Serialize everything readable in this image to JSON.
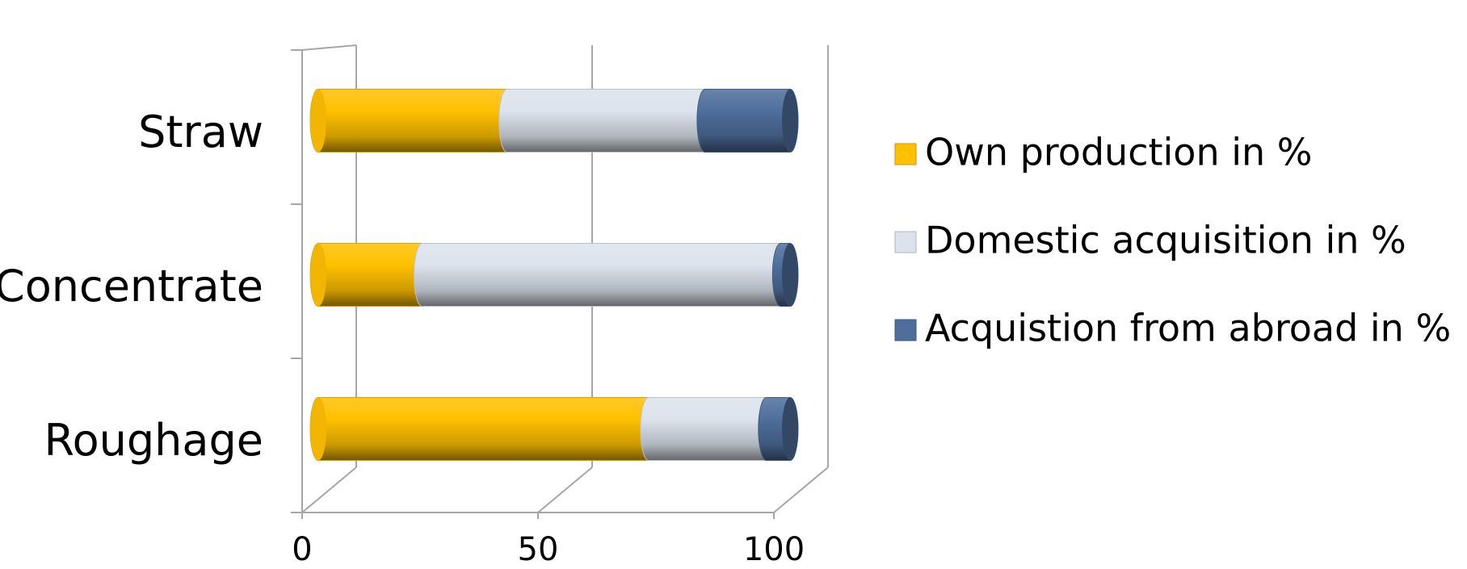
{
  "chart_data": {
    "type": "bar",
    "orientation": "horizontal",
    "stacked": true,
    "percent_stacked": true,
    "three_d": true,
    "categories": [
      "Straw",
      "Concentrate",
      "Roughage"
    ],
    "series": [
      {
        "name": "Own production in %",
        "values": [
          40,
          22,
          70
        ],
        "color": "#FFC000"
      },
      {
        "name": "Domestic acquisition in %",
        "values": [
          42,
          76,
          25
        ],
        "color": "#DCE3EC"
      },
      {
        "name": "Acquistion from abroad in %",
        "values": [
          18,
          2,
          5
        ],
        "color": "#4F6E9C"
      }
    ],
    "xaxis": {
      "ticks": [
        "0",
        "50",
        "100"
      ],
      "min": 0,
      "max": 100
    },
    "gridlines": true,
    "legend": {
      "position": "right"
    },
    "title": "",
    "xlabel": "",
    "ylabel": ""
  }
}
